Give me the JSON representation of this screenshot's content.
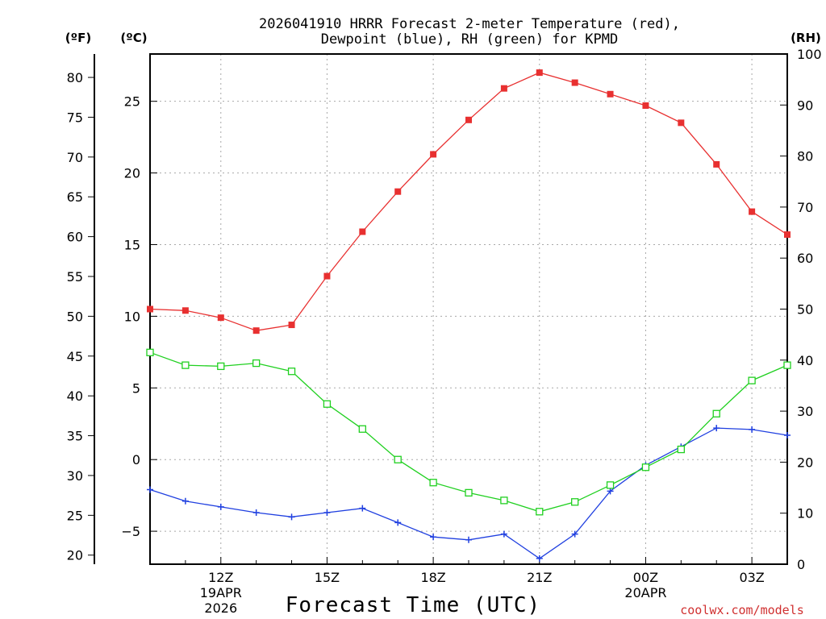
{
  "chart_data": {
    "type": "line",
    "title_lines": [
      "2026041910 HRRR Forecast 2-meter Temperature (red),",
      "Dewpoint (blue), RH (green) for KPMD"
    ],
    "xlabel": "Forecast Time (UTC)",
    "credit": "coolwx.com/models",
    "x_hours": [
      10,
      11,
      12,
      13,
      14,
      15,
      16,
      17,
      18,
      19,
      20,
      21,
      22,
      23,
      24,
      25,
      26,
      27,
      28
    ],
    "xlim": [
      10,
      28
    ],
    "x_ticks": [
      {
        "hour": 12,
        "lines": [
          "12Z",
          "19APR",
          "2026"
        ]
      },
      {
        "hour": 15,
        "lines": [
          "15Z"
        ]
      },
      {
        "hour": 18,
        "lines": [
          "18Z"
        ]
      },
      {
        "hour": 21,
        "lines": [
          "21Z"
        ]
      },
      {
        "hour": 24,
        "lines": [
          "00Z",
          "20APR"
        ]
      },
      {
        "hour": 27,
        "lines": [
          "03Z"
        ]
      }
    ],
    "axes": {
      "fahrenheit": {
        "unit_label": "(ºF)",
        "ticks": [
          20,
          25,
          30,
          35,
          40,
          45,
          50,
          55,
          60,
          65,
          70,
          75,
          80
        ]
      },
      "celsius": {
        "unit_label": "(ºC)",
        "ylim": [
          -7.3,
          28.3
        ],
        "ticks": [
          -5,
          0,
          5,
          10,
          15,
          20,
          25
        ]
      },
      "rh": {
        "unit_label": "(RH)",
        "ylim": [
          0,
          100
        ],
        "ticks": [
          0,
          10,
          20,
          30,
          40,
          50,
          60,
          70,
          80,
          90,
          100
        ]
      }
    },
    "series": [
      {
        "name": "Temperature",
        "axis": "celsius",
        "color": "#e83030",
        "marker": "filled-square",
        "values": [
          10.5,
          10.4,
          9.9,
          9.0,
          9.4,
          12.8,
          15.9,
          18.7,
          21.3,
          23.7,
          25.9,
          27.0,
          26.3,
          25.5,
          24.7,
          23.5,
          20.6,
          17.3,
          15.7
        ]
      },
      {
        "name": "Dewpoint",
        "axis": "celsius",
        "color": "#2040e0",
        "marker": "plus",
        "values": [
          -2.1,
          -2.9,
          -3.3,
          -3.7,
          -4.0,
          -3.7,
          -3.4,
          -4.4,
          -5.4,
          -5.6,
          -5.2,
          -6.9,
          -5.2,
          -2.2,
          -0.4,
          0.9,
          2.2,
          2.1,
          1.7
        ]
      },
      {
        "name": "RH",
        "axis": "rh",
        "color": "#20d020",
        "marker": "open-square",
        "values": [
          41.5,
          39.0,
          38.8,
          39.4,
          37.8,
          31.4,
          26.5,
          20.5,
          16.0,
          14.0,
          12.5,
          10.3,
          12.2,
          15.5,
          19.0,
          22.5,
          29.5,
          36.0,
          39.0
        ]
      }
    ]
  }
}
